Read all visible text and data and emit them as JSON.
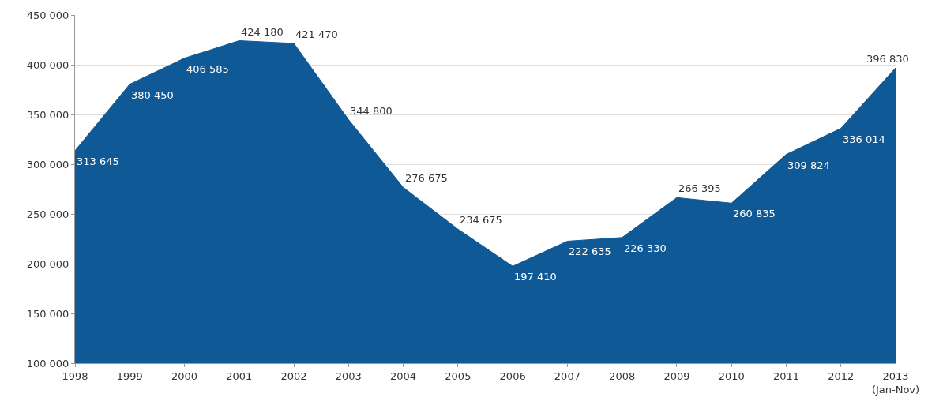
{
  "chart_data": {
    "type": "area",
    "categories": [
      "1998",
      "1999",
      "2000",
      "2001",
      "2002",
      "2003",
      "2004",
      "2005",
      "2006",
      "2007",
      "2008",
      "2009",
      "2010",
      "2011",
      "2012",
      "2013\n(Jan-Nov)"
    ],
    "series": [
      {
        "color": "#0e5996",
        "values": [
          313645,
          380450,
          406585,
          424180,
          421470,
          344800,
          276675,
          234675,
          197410,
          222635,
          226330,
          266395,
          260835,
          309824,
          336014,
          396830
        ]
      }
    ],
    "ylim": [
      100000,
      450000
    ],
    "yticks": [
      {
        "value": 100000,
        "label": "100 000"
      },
      {
        "value": 150000,
        "label": "150 000"
      },
      {
        "value": 200000,
        "label": "200 000"
      },
      {
        "value": 250000,
        "label": "250 000"
      },
      {
        "value": 300000,
        "label": "300 000"
      },
      {
        "value": 350000,
        "label": "350 000"
      },
      {
        "value": 400000,
        "label": "400 000"
      },
      {
        "value": 450000,
        "label": "450 000"
      }
    ],
    "value_labels": [
      "313 645",
      "380 450",
      "406 585",
      "424 180",
      "421 470",
      "344 800",
      "276 675",
      "234 675",
      "197 410",
      "222 635",
      "226 330",
      "266 395",
      "260 835",
      "309 824",
      "336 014",
      "396 830"
    ],
    "grid": "y"
  }
}
